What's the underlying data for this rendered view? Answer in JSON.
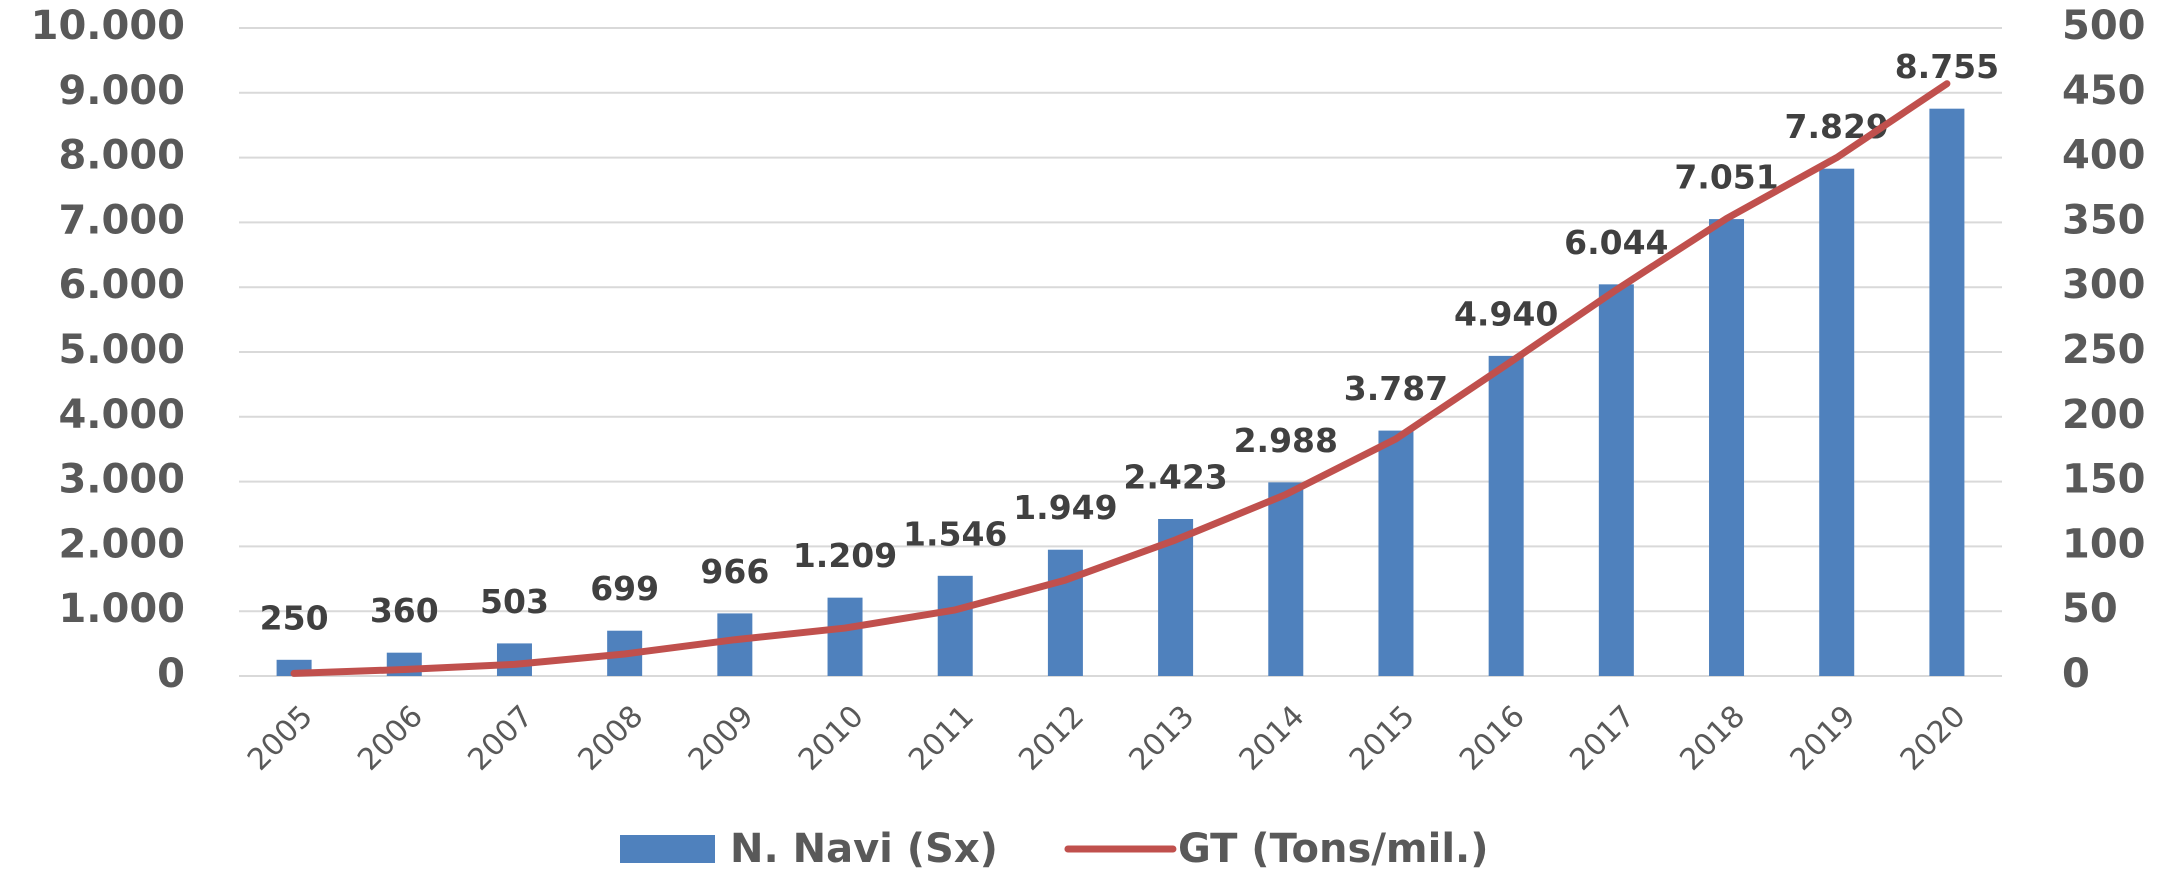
{
  "chart_data": {
    "type": "bar-line",
    "categories": [
      "2005",
      "2006",
      "2007",
      "2008",
      "2009",
      "2010",
      "2011",
      "2012",
      "2013",
      "2014",
      "2015",
      "2016",
      "2017",
      "2018",
      "2019",
      "2020"
    ],
    "series": [
      {
        "name": "N. Navi (Sx)",
        "color": "#4f81bd",
        "type": "bar",
        "values": [
          250,
          360,
          503,
          699,
          966,
          1209,
          1546,
          1949,
          2423,
          2988,
          3787,
          4940,
          6044,
          7051,
          7829,
          8755
        ],
        "value_labels": [
          "250",
          "360",
          "503",
          "699",
          "966",
          "1.209",
          "1.546",
          "1.949",
          "2.423",
          "2.988",
          "3.787",
          "4.940",
          "6.044",
          "7.051",
          "7.829",
          "8.755"
        ]
      },
      {
        "name": "GT (Tons/mil.)",
        "color": "#c0504d",
        "type": "line",
        "axis": "y2",
        "values": [
          2,
          5,
          9,
          17,
          28,
          37,
          51,
          74,
          105,
          140,
          183,
          240,
          298,
          353,
          400,
          457
        ]
      }
    ],
    "ylim": [
      0,
      10000
    ],
    "yticks": [
      0,
      {
        "value": 1000,
        "label": "1.000"
      },
      {
        "value": 2000,
        "label": "2.000"
      },
      {
        "value": 3000,
        "label": "3.000"
      },
      {
        "value": 4000,
        "label": "4.000"
      },
      {
        "value": 5000,
        "label": "5.000"
      },
      {
        "value": 6000,
        "label": "6.000"
      },
      {
        "value": 7000,
        "label": "7.000"
      },
      {
        "value": 8000,
        "label": "8.000"
      },
      {
        "value": 9000,
        "label": "9.000"
      },
      {
        "value": 10000,
        "label": "10.000"
      }
    ],
    "y2lim": [
      0,
      500
    ],
    "y2ticks": [
      0,
      50,
      100,
      150,
      200,
      250,
      300,
      350,
      400,
      450,
      500
    ],
    "grid": true,
    "legend": "bottom"
  }
}
